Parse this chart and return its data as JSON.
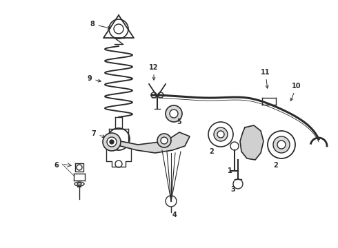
{
  "background_color": "#ffffff",
  "line_color": "#2a2a2a",
  "lw": 1.0,
  "figsize": [
    4.9,
    3.6
  ],
  "dpi": 100,
  "xlim": [
    0,
    490
  ],
  "ylim": [
    0,
    360
  ]
}
